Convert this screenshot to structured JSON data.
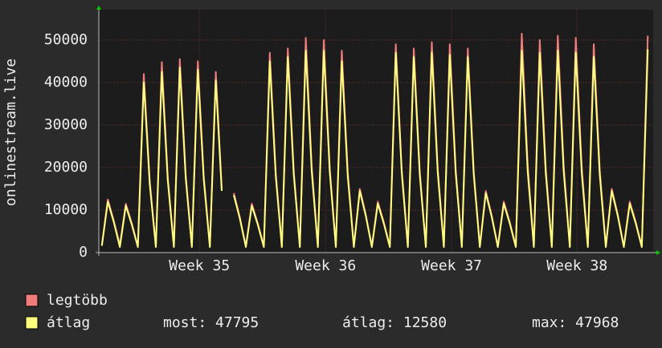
{
  "chart_data": {
    "type": "line",
    "ylabel": "onlinestream.live",
    "x": [
      -0.33,
      0,
      0.33,
      0.67,
      1,
      1.33,
      1.67,
      2,
      2.33,
      2.67,
      3,
      3.33,
      3.67,
      4,
      4.33,
      4.67,
      5,
      5.33,
      5.67,
      6,
      6.33,
      6.67,
      7,
      7.33,
      7.67,
      8,
      8.33,
      8.67,
      9,
      9.33,
      9.67,
      10,
      10.33,
      10.67,
      11,
      11.33,
      11.67,
      12,
      12.33,
      12.67,
      13,
      13.33,
      13.67,
      14,
      14.33,
      14.67,
      15,
      15.33,
      15.67,
      16,
      16.33,
      16.67,
      17,
      17.33,
      17.67,
      18,
      18.33,
      18.67,
      19,
      19.33,
      19.67,
      20,
      20.33,
      20.67,
      21,
      21.33,
      21.67,
      22,
      22.33,
      22.67,
      23,
      23.33,
      23.67,
      24,
      24.33,
      24.67,
      25,
      25.33,
      25.67,
      26,
      26.33,
      26.67,
      27,
      27.33,
      27.67,
      28,
      28.33,
      28.67,
      29,
      29.33,
      29.67,
      30
    ],
    "series": [
      {
        "name": "legtöbb",
        "color": "#f07c7c",
        "values": [
          1800,
          12500,
          7500,
          1800,
          11500,
          6900,
          1500,
          42000,
          16800,
          1500,
          44800,
          17900,
          1500,
          45500,
          18200,
          1500,
          45000,
          18000,
          1500,
          42500,
          15000,
          null,
          14000,
          8400,
          1500,
          11500,
          6900,
          1500,
          47000,
          18800,
          1500,
          48000,
          19200,
          1500,
          50500,
          20200,
          1500,
          50000,
          20000,
          1500,
          47500,
          19000,
          1500,
          15000,
          9000,
          1500,
          12000,
          7200,
          1500,
          49000,
          19600,
          1500,
          48000,
          19200,
          1500,
          49500,
          19800,
          1500,
          49000,
          19600,
          1500,
          48000,
          19200,
          1500,
          14500,
          8700,
          1500,
          12000,
          7200,
          1500,
          51500,
          20600,
          1500,
          50000,
          20000,
          1500,
          51000,
          20400,
          1500,
          50500,
          20200,
          1500,
          49000,
          19600,
          1500,
          15000,
          9000,
          1500,
          12000,
          7200,
          1500,
          51000
        ]
      },
      {
        "name": "átlag",
        "color": "#ffff80",
        "values": [
          1600,
          12000,
          7200,
          1300,
          11000,
          6600,
          1300,
          40000,
          16000,
          1300,
          42500,
          17000,
          1300,
          43500,
          17400,
          1300,
          43000,
          17200,
          1300,
          40500,
          14500,
          null,
          13500,
          8100,
          1300,
          11000,
          6600,
          1300,
          45000,
          18000,
          1300,
          46000,
          18400,
          1300,
          47500,
          19000,
          1300,
          47500,
          19000,
          1300,
          45000,
          18000,
          1300,
          14500,
          8700,
          1300,
          11500,
          6900,
          1300,
          47000,
          18800,
          1300,
          46000,
          18400,
          1300,
          47000,
          18800,
          1300,
          46500,
          18600,
          1300,
          46000,
          18400,
          1300,
          14000,
          8400,
          1300,
          11500,
          6900,
          1300,
          47500,
          19000,
          1300,
          47000,
          18800,
          1300,
          47500,
          19000,
          1300,
          47000,
          18800,
          1300,
          46000,
          18400,
          1300,
          14500,
          8700,
          1300,
          11500,
          6900,
          1300,
          47800
        ]
      }
    ],
    "xlim": [
      -0.5,
      30.3
    ],
    "xticks": [
      {
        "value": 5.09,
        "label": "Week 35"
      },
      {
        "value": 12.1,
        "label": "Week 36"
      },
      {
        "value": 19.1,
        "label": "Week 37"
      },
      {
        "value": 26.07,
        "label": "Week 38"
      }
    ],
    "ylim": [
      0,
      56000
    ],
    "yticks": [
      0,
      10000,
      20000,
      30000,
      40000,
      50000
    ],
    "grid": true,
    "stats": [
      "most: 47795",
      "átlag: 12580",
      "max: 47968"
    ]
  }
}
